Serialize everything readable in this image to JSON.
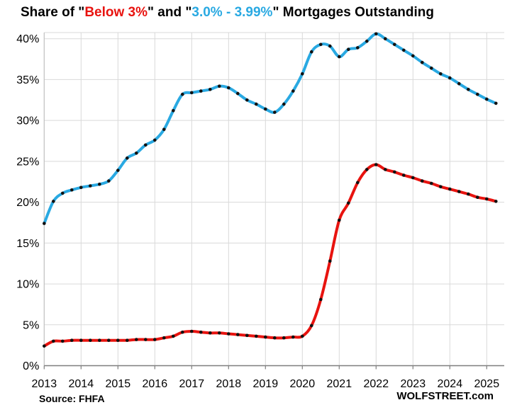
{
  "title": {
    "part1": "Share of \"",
    "red_text": "Below 3%",
    "part2": "\" and \"",
    "blue_text": "3.0% - 3.99%",
    "part3": "\" Mortgages Outstanding"
  },
  "footer": {
    "source": "Source: FHFA",
    "watermark": "WOLFSTREET.com"
  },
  "colors": {
    "red": "#e8130f",
    "blue": "#29a9e2",
    "marker": "#111111",
    "grid": "#d9d9d9",
    "axis_left": "#c0c0c0",
    "axis_bottom": "#7f7f7f",
    "text": "#000000"
  },
  "chart_data": {
    "type": "line",
    "title": "Share of \"Below 3%\" and \"3.0% - 3.99%\" Mortgages Outstanding",
    "x_unit": "quarter",
    "x_range": [
      "2013 Q1",
      "2025 Q2"
    ],
    "categories_years": [
      "2013",
      "2014",
      "2015",
      "2016",
      "2017",
      "2018",
      "2019",
      "2020",
      "2021",
      "2022",
      "2023",
      "2024",
      "2025"
    ],
    "ylim": [
      0,
      40
    ],
    "ytick_step": 5,
    "ytick_labels": [
      "0%",
      "5%",
      "10%",
      "15%",
      "20%",
      "25%",
      "30%",
      "35%",
      "40%"
    ],
    "grid": true,
    "legend_position": "in-title",
    "marker": "dot",
    "series": [
      {
        "name": "3.0% - 3.99%",
        "color_key": "blue",
        "values": [
          17.4,
          20.1,
          21.1,
          21.5,
          21.8,
          22.0,
          22.2,
          22.6,
          23.9,
          25.4,
          26.0,
          27.0,
          27.6,
          28.9,
          31.2,
          33.2,
          33.4,
          33.6,
          33.8,
          34.2,
          34.0,
          33.3,
          32.5,
          32.0,
          31.4,
          31.0,
          32.0,
          33.6,
          35.7,
          38.4,
          39.3,
          39.1,
          37.8,
          38.7,
          38.9,
          39.7,
          40.6,
          40.0,
          39.3,
          38.6,
          37.9,
          37.1,
          36.4,
          35.7,
          35.2,
          34.5,
          33.8,
          33.2,
          32.6,
          32.1
        ]
      },
      {
        "name": "Below 3%",
        "color_key": "red",
        "values": [
          2.4,
          3.0,
          3.0,
          3.1,
          3.1,
          3.1,
          3.1,
          3.1,
          3.1,
          3.1,
          3.2,
          3.2,
          3.2,
          3.4,
          3.6,
          4.1,
          4.2,
          4.1,
          4.0,
          4.0,
          3.9,
          3.8,
          3.7,
          3.6,
          3.5,
          3.4,
          3.4,
          3.5,
          3.6,
          4.9,
          8.1,
          12.8,
          17.8,
          19.9,
          22.4,
          24.0,
          24.6,
          24.0,
          23.7,
          23.3,
          23.0,
          22.6,
          22.3,
          21.9,
          21.6,
          21.3,
          21.0,
          20.6,
          20.4,
          20.1
        ]
      }
    ]
  }
}
